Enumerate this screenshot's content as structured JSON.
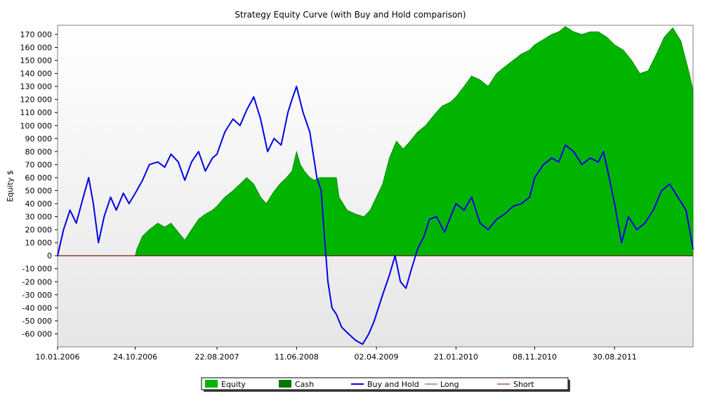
{
  "chart_data": {
    "type": "area",
    "title": "Strategy Equity Curve (with Buy and Hold comparison)",
    "xlabel": "",
    "ylabel": "Equity $",
    "ylim": [
      -70000,
      177000
    ],
    "y_ticks": [
      -60000,
      -50000,
      -40000,
      -30000,
      -20000,
      -10000,
      0,
      10000,
      20000,
      30000,
      40000,
      50000,
      60000,
      70000,
      80000,
      90000,
      100000,
      110000,
      120000,
      130000,
      140000,
      150000,
      160000,
      170000
    ],
    "y_tick_labels": [
      "-60 000",
      "-50 000",
      "-40 000",
      "-30 000",
      "-20 000",
      "-10 000",
      "0",
      "10 000",
      "20 000",
      "30 000",
      "40 000",
      "50 000",
      "60 000",
      "70 000",
      "80 000",
      "90 000",
      "100 000",
      "110 000",
      "120 000",
      "130 000",
      "140 000",
      "150 000",
      "160 000",
      "170 000"
    ],
    "x_ticks": [
      "2006-01-10",
      "2006-10-24",
      "2007-08-22",
      "2008-06-11",
      "2009-04-02",
      "2010-01-21",
      "2010-11-08",
      "2011-08-30"
    ],
    "x_tick_labels": [
      "10.01.2006",
      "24.10.2006",
      "22.08.2007",
      "11.06.2008",
      "02.04.2009",
      "21.01.2010",
      "08.11.2010",
      "30.08.2011"
    ],
    "xlim": [
      "2006-01-10",
      "2012-06-15"
    ],
    "grid": false,
    "legend_placement": "bottom-center",
    "legend": [
      "Equity",
      "Cash",
      "Buy and Hold",
      "Long",
      "Short"
    ],
    "colors": {
      "equity": "#00b400",
      "cash": "#007800",
      "buy_and_hold": "#0000e6",
      "long": "#008000",
      "short": "#800000"
    },
    "series": [
      {
        "name": "Equity",
        "type": "area",
        "x": [
          "2006-01-10",
          "2006-10-24",
          "2006-10-30",
          "2006-11-20",
          "2006-12-15",
          "2007-01-15",
          "2007-02-10",
          "2007-03-05",
          "2007-04-01",
          "2007-04-25",
          "2007-05-20",
          "2007-06-15",
          "2007-07-10",
          "2007-08-05",
          "2007-08-22",
          "2007-09-20",
          "2007-10-20",
          "2007-11-15",
          "2007-12-10",
          "2008-01-05",
          "2008-01-30",
          "2008-02-20",
          "2008-03-15",
          "2008-04-10",
          "2008-05-05",
          "2008-05-25",
          "2008-06-11",
          "2008-06-25",
          "2008-07-10",
          "2008-07-30",
          "2008-08-15",
          "2008-09-05",
          "2008-09-15",
          "2008-11-05",
          "2008-11-15",
          "2008-12-15",
          "2009-01-15",
          "2009-02-15",
          "2009-03-10",
          "2009-04-02",
          "2009-04-25",
          "2009-05-20",
          "2009-06-15",
          "2009-07-10",
          "2009-08-05",
          "2009-09-01",
          "2009-10-01",
          "2009-11-01",
          "2009-12-01",
          "2010-01-01",
          "2010-01-21",
          "2010-02-20",
          "2010-03-20",
          "2010-04-20",
          "2010-05-20",
          "2010-06-20",
          "2010-07-20",
          "2010-08-20",
          "2010-09-20",
          "2010-10-20",
          "2010-11-08",
          "2010-12-10",
          "2011-01-10",
          "2011-02-05",
          "2011-03-01",
          "2011-04-01",
          "2011-05-01",
          "2011-06-01",
          "2011-07-01",
          "2011-08-01",
          "2011-08-30",
          "2011-10-01",
          "2011-11-01",
          "2011-12-01",
          "2012-01-01",
          "2012-02-01",
          "2012-03-01",
          "2012-04-01",
          "2012-05-01",
          "2012-06-01",
          "2012-06-15"
        ],
        "y": [
          0,
          0,
          5000,
          15000,
          20000,
          25000,
          22000,
          25000,
          18000,
          12000,
          20000,
          28000,
          32000,
          35000,
          38000,
          45000,
          50000,
          55000,
          60000,
          55000,
          45000,
          40000,
          48000,
          55000,
          60000,
          65000,
          80000,
          70000,
          65000,
          60000,
          58000,
          60000,
          60000,
          60000,
          45000,
          35000,
          32000,
          30000,
          35000,
          45000,
          55000,
          75000,
          88000,
          82000,
          88000,
          95000,
          100000,
          108000,
          115000,
          118000,
          122000,
          130000,
          138000,
          135000,
          130000,
          140000,
          145000,
          150000,
          155000,
          158000,
          162000,
          166000,
          170000,
          172000,
          176000,
          172000,
          170000,
          172000,
          172000,
          168000,
          162000,
          158000,
          150000,
          140000,
          142000,
          155000,
          168000,
          175000,
          165000,
          140000,
          127000
        ]
      },
      {
        "name": "Buy and Hold",
        "type": "line",
        "x": [
          "2006-01-10",
          "2006-02-01",
          "2006-02-25",
          "2006-03-20",
          "2006-04-15",
          "2006-05-05",
          "2006-05-22",
          "2006-06-10",
          "2006-07-01",
          "2006-07-25",
          "2006-08-15",
          "2006-09-10",
          "2006-10-01",
          "2006-10-24",
          "2006-11-20",
          "2006-12-15",
          "2007-01-15",
          "2007-02-10",
          "2007-03-05",
          "2007-04-01",
          "2007-04-25",
          "2007-05-20",
          "2007-06-15",
          "2007-07-10",
          "2007-08-05",
          "2007-08-22",
          "2007-09-20",
          "2007-10-20",
          "2007-11-15",
          "2007-12-10",
          "2008-01-05",
          "2008-01-30",
          "2008-02-25",
          "2008-03-20",
          "2008-04-15",
          "2008-05-10",
          "2008-05-25",
          "2008-06-11",
          "2008-07-05",
          "2008-07-30",
          "2008-08-25",
          "2008-09-10",
          "2008-09-20",
          "2008-10-05",
          "2008-10-20",
          "2008-11-05",
          "2008-11-25",
          "2008-12-20",
          "2009-01-15",
          "2009-02-10",
          "2009-03-05",
          "2009-03-25",
          "2009-04-02",
          "2009-04-25",
          "2009-05-20",
          "2009-06-10",
          "2009-06-30",
          "2009-07-20",
          "2009-08-10",
          "2009-09-01",
          "2009-09-25",
          "2009-10-15",
          "2009-11-10",
          "2009-12-10",
          "2010-01-05",
          "2010-01-21",
          "2010-02-20",
          "2010-03-20",
          "2010-04-20",
          "2010-05-20",
          "2010-06-20",
          "2010-07-20",
          "2010-08-20",
          "2010-09-20",
          "2010-10-20",
          "2010-11-08",
          "2010-12-10",
          "2011-01-10",
          "2011-02-05",
          "2011-03-01",
          "2011-04-01",
          "2011-05-01",
          "2011-06-01",
          "2011-07-01",
          "2011-07-20",
          "2011-08-10",
          "2011-08-30",
          "2011-09-25",
          "2011-10-20",
          "2011-11-20",
          "2011-12-20",
          "2012-01-20",
          "2012-02-20",
          "2012-03-20",
          "2012-04-20",
          "2012-05-20",
          "2012-06-15"
        ],
        "y": [
          0,
          20000,
          35000,
          25000,
          45000,
          60000,
          40000,
          10000,
          30000,
          45000,
          35000,
          48000,
          40000,
          48000,
          58000,
          70000,
          72000,
          68000,
          78000,
          72000,
          58000,
          72000,
          80000,
          65000,
          75000,
          78000,
          95000,
          105000,
          100000,
          112000,
          122000,
          105000,
          80000,
          90000,
          85000,
          110000,
          120000,
          130000,
          110000,
          95000,
          60000,
          50000,
          20000,
          -20000,
          -40000,
          -45000,
          -55000,
          -60000,
          -65000,
          -68000,
          -60000,
          -50000,
          -45000,
          -30000,
          -15000,
          0,
          -20000,
          -25000,
          -10000,
          5000,
          15000,
          28000,
          30000,
          18000,
          32000,
          40000,
          35000,
          45000,
          25000,
          20000,
          28000,
          32000,
          38000,
          40000,
          45000,
          60000,
          70000,
          75000,
          72000,
          85000,
          80000,
          70000,
          75000,
          72000,
          80000,
          60000,
          40000,
          10000,
          30000,
          20000,
          25000,
          35000,
          50000,
          55000,
          45000,
          35000,
          5000
        ]
      }
    ],
    "long_marker_value": 0,
    "short_line_value": 0
  }
}
